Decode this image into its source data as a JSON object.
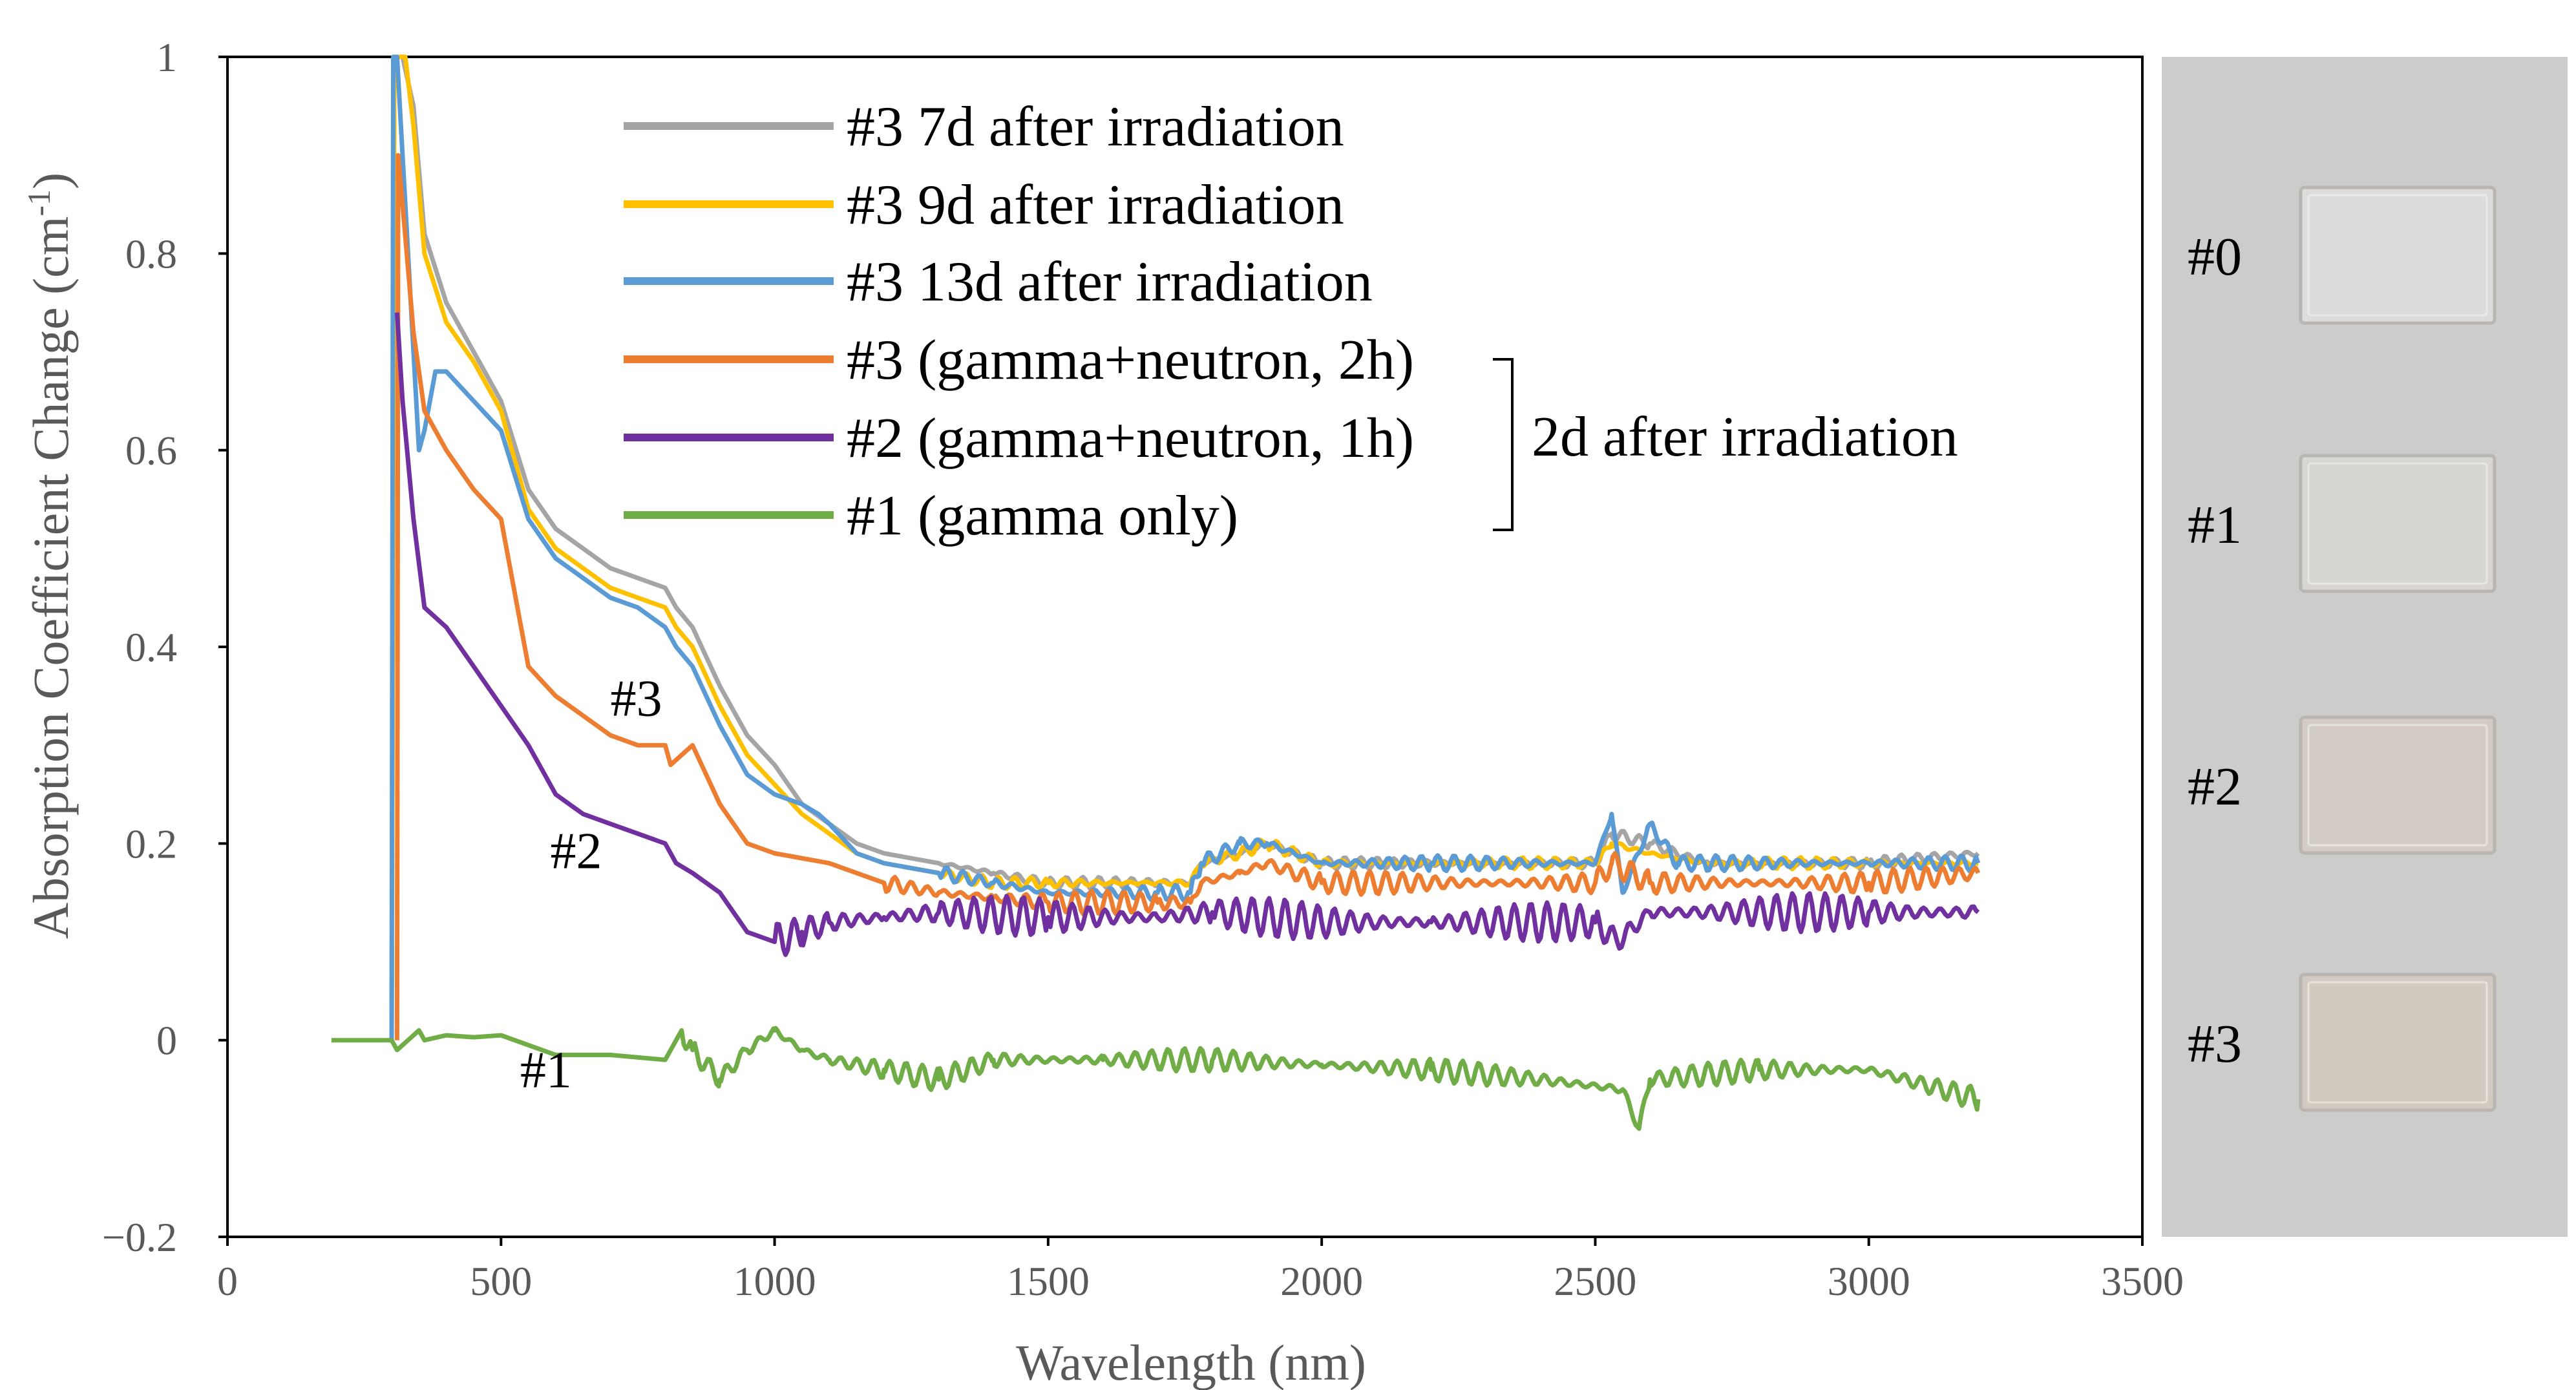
{
  "chart_data": {
    "type": "line",
    "title": "",
    "xlabel": "Wavelength (nm)",
    "ylabel": "Absorption Coefficient Change (cm",
    "ylabel_sup": "-1",
    "ylabel_close": ")",
    "xlim": [
      0,
      3500
    ],
    "ylim": [
      -0.2,
      1
    ],
    "xticks": [
      {
        "value": 0,
        "label": "0"
      },
      {
        "value": 500,
        "label": "500"
      },
      {
        "value": 1000,
        "label": "1000"
      },
      {
        "value": 1500,
        "label": "1500"
      },
      {
        "value": 2000,
        "label": "2000"
      },
      {
        "value": 2500,
        "label": "2500"
      },
      {
        "value": 3000,
        "label": "3000"
      },
      {
        "value": 3500,
        "label": "3500"
      }
    ],
    "yticks": [
      {
        "value": -0.2,
        "label": "−0.2"
      },
      {
        "value": 0,
        "label": "0"
      },
      {
        "value": 0.2,
        "label": "0.2"
      },
      {
        "value": 0.4,
        "label": "0.4"
      },
      {
        "value": 0.6,
        "label": "0.6"
      },
      {
        "value": 0.8,
        "label": "0.8"
      },
      {
        "value": 1,
        "label": "1"
      }
    ],
    "grid": false,
    "legend_position": "top-center",
    "legend_bracket_label": "2d after irradiation",
    "series": [
      {
        "name": "#3 7d after irradiation",
        "color": "#a5a5a5",
        "ripple_start": 1300,
        "ripple_amp": 0.006,
        "points": [
          [
            300,
            0
          ],
          [
            305,
            1.0
          ],
          [
            320,
            1.0
          ],
          [
            340,
            0.95
          ],
          [
            360,
            0.82
          ],
          [
            400,
            0.75
          ],
          [
            450,
            0.7
          ],
          [
            500,
            0.65
          ],
          [
            550,
            0.56
          ],
          [
            600,
            0.52
          ],
          [
            650,
            0.5
          ],
          [
            700,
            0.48
          ],
          [
            750,
            0.47
          ],
          [
            800,
            0.46
          ],
          [
            820,
            0.44
          ],
          [
            850,
            0.42
          ],
          [
            900,
            0.36
          ],
          [
            950,
            0.31
          ],
          [
            1000,
            0.28
          ],
          [
            1050,
            0.24
          ],
          [
            1100,
            0.22
          ],
          [
            1150,
            0.2
          ],
          [
            1200,
            0.19
          ],
          [
            1300,
            0.18
          ],
          [
            1400,
            0.17
          ],
          [
            1500,
            0.16
          ],
          [
            1700,
            0.16
          ],
          [
            1760,
            0.16
          ],
          [
            1780,
            0.18
          ],
          [
            1850,
            0.19
          ],
          [
            1900,
            0.2
          ],
          [
            2000,
            0.18
          ],
          [
            2200,
            0.18
          ],
          [
            2500,
            0.18
          ],
          [
            2530,
            0.21
          ],
          [
            2600,
            0.2
          ],
          [
            2700,
            0.18
          ],
          [
            3000,
            0.18
          ],
          [
            3200,
            0.19
          ]
        ]
      },
      {
        "name": "#3 9d after irradiation",
        "color": "#ffc000",
        "ripple_start": 1300,
        "ripple_amp": 0.006,
        "points": [
          [
            300,
            0
          ],
          [
            305,
            1.0
          ],
          [
            325,
            1.0
          ],
          [
            340,
            0.93
          ],
          [
            360,
            0.8
          ],
          [
            400,
            0.73
          ],
          [
            450,
            0.69
          ],
          [
            500,
            0.64
          ],
          [
            550,
            0.54
          ],
          [
            600,
            0.5
          ],
          [
            650,
            0.48
          ],
          [
            700,
            0.46
          ],
          [
            750,
            0.45
          ],
          [
            800,
            0.44
          ],
          [
            820,
            0.42
          ],
          [
            850,
            0.4
          ],
          [
            900,
            0.34
          ],
          [
            950,
            0.29
          ],
          [
            1000,
            0.26
          ],
          [
            1050,
            0.23
          ],
          [
            1100,
            0.21
          ],
          [
            1150,
            0.19
          ],
          [
            1200,
            0.18
          ],
          [
            1300,
            0.17
          ],
          [
            1400,
            0.16
          ],
          [
            1500,
            0.16
          ],
          [
            1700,
            0.16
          ],
          [
            1760,
            0.16
          ],
          [
            1780,
            0.18
          ],
          [
            1850,
            0.19
          ],
          [
            1900,
            0.2
          ],
          [
            2000,
            0.18
          ],
          [
            2200,
            0.18
          ],
          [
            2500,
            0.18
          ],
          [
            2530,
            0.2
          ],
          [
            2600,
            0.19
          ],
          [
            2700,
            0.18
          ],
          [
            3000,
            0.18
          ],
          [
            3200,
            0.18
          ]
        ]
      },
      {
        "name": "#3 13d after irradiation",
        "color": "#5b9bd5",
        "ripple_start": 1300,
        "ripple_amp": 0.008,
        "points": [
          [
            300,
            0
          ],
          [
            303,
            1.0
          ],
          [
            310,
            1.0
          ],
          [
            330,
            0.8
          ],
          [
            350,
            0.6
          ],
          [
            360,
            0.62
          ],
          [
            380,
            0.68
          ],
          [
            400,
            0.68
          ],
          [
            450,
            0.65
          ],
          [
            500,
            0.62
          ],
          [
            550,
            0.53
          ],
          [
            600,
            0.49
          ],
          [
            650,
            0.47
          ],
          [
            700,
            0.45
          ],
          [
            750,
            0.44
          ],
          [
            800,
            0.42
          ],
          [
            820,
            0.4
          ],
          [
            850,
            0.38
          ],
          [
            900,
            0.32
          ],
          [
            950,
            0.27
          ],
          [
            1000,
            0.25
          ],
          [
            1050,
            0.24
          ],
          [
            1080,
            0.23
          ],
          [
            1100,
            0.22
          ],
          [
            1150,
            0.19
          ],
          [
            1200,
            0.18
          ],
          [
            1300,
            0.17
          ],
          [
            1400,
            0.16
          ],
          [
            1500,
            0.15
          ],
          [
            1700,
            0.15
          ],
          [
            1760,
            0.15
          ],
          [
            1780,
            0.18
          ],
          [
            1850,
            0.2
          ],
          [
            1900,
            0.2
          ],
          [
            2000,
            0.18
          ],
          [
            2200,
            0.18
          ],
          [
            2500,
            0.18
          ],
          [
            2530,
            0.23
          ],
          [
            2550,
            0.15
          ],
          [
            2600,
            0.22
          ],
          [
            2650,
            0.18
          ],
          [
            2700,
            0.18
          ],
          [
            3000,
            0.18
          ],
          [
            3200,
            0.18
          ]
        ]
      },
      {
        "name": "#3 (gamma+neutron, 2h)",
        "color": "#ed7d31",
        "ripple_start": 1200,
        "ripple_amp": 0.012,
        "points": [
          [
            310,
            0
          ],
          [
            312,
            0.9
          ],
          [
            320,
            0.85
          ],
          [
            340,
            0.72
          ],
          [
            360,
            0.64
          ],
          [
            400,
            0.6
          ],
          [
            450,
            0.56
          ],
          [
            500,
            0.53
          ],
          [
            550,
            0.38
          ],
          [
            600,
            0.35
          ],
          [
            650,
            0.33
          ],
          [
            700,
            0.31
          ],
          [
            750,
            0.3
          ],
          [
            800,
            0.3
          ],
          [
            810,
            0.28
          ],
          [
            850,
            0.3
          ],
          [
            900,
            0.24
          ],
          [
            950,
            0.2
          ],
          [
            1000,
            0.19
          ],
          [
            1100,
            0.18
          ],
          [
            1200,
            0.16
          ],
          [
            1300,
            0.15
          ],
          [
            1400,
            0.145
          ],
          [
            1500,
            0.14
          ],
          [
            1700,
            0.14
          ],
          [
            1760,
            0.14
          ],
          [
            1780,
            0.16
          ],
          [
            1850,
            0.17
          ],
          [
            1900,
            0.18
          ],
          [
            2000,
            0.16
          ],
          [
            2200,
            0.16
          ],
          [
            2500,
            0.16
          ],
          [
            2530,
            0.18
          ],
          [
            2600,
            0.16
          ],
          [
            3000,
            0.16
          ],
          [
            3200,
            0.17
          ]
        ]
      },
      {
        "name": "#2 (gamma+neutron, 1h)",
        "color": "#7030a0",
        "ripple_start": 1000,
        "ripple_amp": 0.02,
        "points": [
          [
            310,
            0.74
          ],
          [
            320,
            0.65
          ],
          [
            340,
            0.53
          ],
          [
            360,
            0.44
          ],
          [
            400,
            0.42
          ],
          [
            450,
            0.38
          ],
          [
            500,
            0.34
          ],
          [
            550,
            0.3
          ],
          [
            580,
            0.27
          ],
          [
            600,
            0.25
          ],
          [
            650,
            0.23
          ],
          [
            700,
            0.22
          ],
          [
            750,
            0.21
          ],
          [
            800,
            0.2
          ],
          [
            820,
            0.18
          ],
          [
            850,
            0.17
          ],
          [
            900,
            0.15
          ],
          [
            950,
            0.11
          ],
          [
            1000,
            0.1
          ],
          [
            1050,
            0.11
          ],
          [
            1100,
            0.12
          ],
          [
            1200,
            0.125
          ],
          [
            1300,
            0.13
          ],
          [
            1500,
            0.125
          ],
          [
            1700,
            0.125
          ],
          [
            1800,
            0.13
          ],
          [
            2000,
            0.12
          ],
          [
            2200,
            0.12
          ],
          [
            2500,
            0.12
          ],
          [
            2540,
            0.1
          ],
          [
            2600,
            0.13
          ],
          [
            3000,
            0.13
          ],
          [
            3200,
            0.13
          ]
        ]
      },
      {
        "name": "#1 (gamma only)",
        "color": "#70ad47",
        "ripple_start": 830,
        "ripple_amp": 0.012,
        "points": [
          [
            190,
            0
          ],
          [
            300,
            0
          ],
          [
            310,
            -0.01
          ],
          [
            330,
            0
          ],
          [
            350,
            0.01
          ],
          [
            360,
            0
          ],
          [
            400,
            0.005
          ],
          [
            450,
            0.003
          ],
          [
            500,
            0.005
          ],
          [
            550,
            -0.005
          ],
          [
            600,
            -0.015
          ],
          [
            700,
            -0.015
          ],
          [
            800,
            -0.02
          ],
          [
            830,
            0.01
          ],
          [
            850,
            -0.01
          ],
          [
            900,
            -0.04
          ],
          [
            950,
            -0.01
          ],
          [
            1000,
            0.01
          ],
          [
            1050,
            -0.01
          ],
          [
            1100,
            -0.02
          ],
          [
            1200,
            -0.03
          ],
          [
            1300,
            -0.04
          ],
          [
            1400,
            -0.02
          ],
          [
            1600,
            -0.02
          ],
          [
            1800,
            -0.02
          ],
          [
            2000,
            -0.025
          ],
          [
            2200,
            -0.03
          ],
          [
            2400,
            -0.04
          ],
          [
            2550,
            -0.05
          ],
          [
            2580,
            -0.09
          ],
          [
            2600,
            -0.04
          ],
          [
            2800,
            -0.03
          ],
          [
            3000,
            -0.03
          ],
          [
            3200,
            -0.06
          ]
        ]
      }
    ],
    "annotations": [
      {
        "text": "#3",
        "x": 700,
        "y": 0.33
      },
      {
        "text": "#2",
        "x": 590,
        "y": 0.175
      },
      {
        "text": "#1",
        "x": 535,
        "y": -0.048
      }
    ]
  },
  "photo": {
    "samples": [
      "#0",
      "#1",
      "#2",
      "#3"
    ],
    "background_color": "#ccccca"
  }
}
